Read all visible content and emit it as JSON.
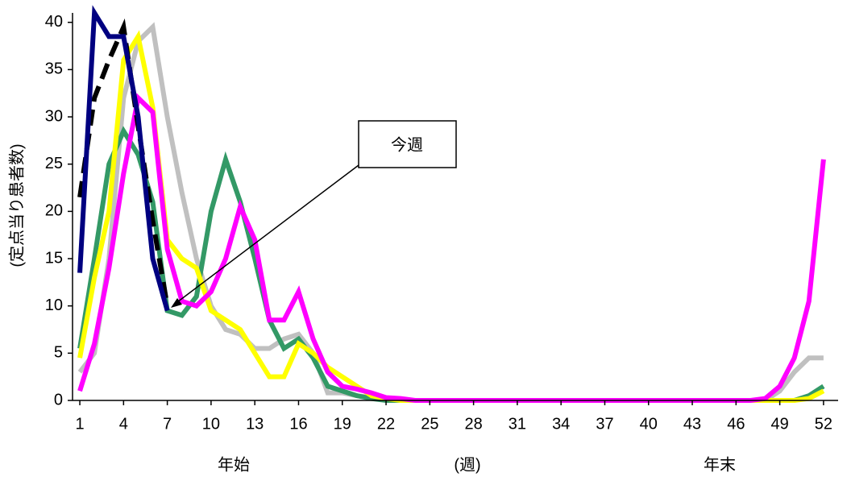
{
  "chart_data": {
    "type": "line",
    "y_label": "(定点当り患者数)",
    "x_label": "(週)",
    "x_start_label": "年始",
    "x_end_label": "年末",
    "annotation": "今週",
    "x": [
      1,
      2,
      3,
      4,
      5,
      6,
      7,
      8,
      9,
      10,
      11,
      12,
      13,
      14,
      15,
      16,
      17,
      18,
      19,
      20,
      21,
      22,
      23,
      24,
      25,
      26,
      27,
      28,
      29,
      30,
      31,
      32,
      33,
      34,
      35,
      36,
      37,
      38,
      39,
      40,
      41,
      42,
      43,
      44,
      45,
      46,
      47,
      48,
      49,
      50,
      51,
      52
    ],
    "xlim": [
      0.5,
      53
    ],
    "xticks": [
      1,
      4,
      7,
      10,
      13,
      16,
      19,
      22,
      25,
      28,
      31,
      34,
      37,
      40,
      43,
      46,
      49,
      52
    ],
    "ylim": [
      0,
      41
    ],
    "yticks": [
      0,
      5,
      10,
      15,
      20,
      25,
      30,
      35,
      40
    ],
    "series": [
      {
        "color": "#c0c0c0",
        "dashed": false,
        "values": [
          3,
          5,
          15,
          32,
          38,
          39.5,
          30,
          22,
          15,
          10,
          7.5,
          7,
          5.5,
          5.5,
          6.5,
          7,
          5,
          0.8,
          0.8,
          0.5,
          0.3,
          0,
          0,
          0,
          0,
          0,
          0,
          0,
          0,
          0,
          0,
          0,
          0,
          0,
          0,
          0,
          0,
          0,
          0,
          0,
          0,
          0,
          0,
          0,
          0,
          0,
          0,
          0,
          1,
          3,
          4.5,
          4.5
        ]
      },
      {
        "color": "#339966",
        "dashed": false,
        "values": [
          5.5,
          15,
          25,
          28.5,
          26,
          21,
          9.5,
          9,
          11,
          20,
          25.5,
          21,
          15,
          8.5,
          5.5,
          6.5,
          4.5,
          1.5,
          1,
          0.5,
          0.2,
          0,
          0,
          0,
          0,
          0,
          0,
          0,
          0,
          0,
          0,
          0,
          0,
          0,
          0,
          0,
          0,
          0,
          0,
          0,
          0,
          0,
          0,
          0,
          0,
          0,
          0,
          0,
          0,
          0,
          0.5,
          1.5
        ]
      },
      {
        "color": "#ffff00",
        "dashed": false,
        "values": [
          4.5,
          13,
          20,
          36,
          38.5,
          31,
          17,
          15,
          14,
          9.5,
          8.5,
          7.5,
          5,
          2.5,
          2.5,
          6,
          5,
          3.5,
          2.5,
          1.5,
          0.5,
          0.2,
          0,
          0,
          0,
          0,
          0,
          0,
          0,
          0,
          0,
          0,
          0,
          0,
          0,
          0,
          0,
          0,
          0,
          0,
          0,
          0,
          0,
          0,
          0,
          0,
          0,
          0,
          0,
          0,
          0.2,
          1
        ]
      },
      {
        "color": "#ff00ff",
        "dashed": false,
        "values": [
          1,
          6,
          14,
          24,
          32,
          30.5,
          16,
          10.5,
          10,
          11.5,
          15,
          20.5,
          17,
          8.5,
          8.5,
          11.5,
          6.5,
          3,
          1.5,
          1.2,
          0.8,
          0.3,
          0.2,
          0,
          0,
          0,
          0,
          0,
          0,
          0,
          0,
          0,
          0,
          0,
          0,
          0,
          0,
          0,
          0,
          0,
          0,
          0,
          0,
          0,
          0,
          0,
          0,
          0.2,
          1.5,
          4.5,
          10.5,
          25.5
        ]
      },
      {
        "color": "#000000",
        "dashed": true,
        "values": [
          21.5,
          32,
          36,
          39.5,
          29,
          19,
          10,
          null,
          null,
          null,
          null,
          null,
          null,
          null,
          null,
          null,
          null,
          null,
          null,
          null,
          null,
          null,
          null,
          null,
          null,
          null,
          null,
          null,
          null,
          null,
          null,
          null,
          null,
          null,
          null,
          null,
          null,
          null,
          null,
          null,
          null,
          null,
          null,
          null,
          null,
          null,
          null,
          null,
          null,
          null,
          null,
          null
        ]
      },
      {
        "color": "#000080",
        "dashed": false,
        "values": [
          13.5,
          41,
          38.5,
          38.5,
          30,
          15,
          9.5,
          null,
          null,
          null,
          null,
          null,
          null,
          null,
          null,
          null,
          null,
          null,
          null,
          null,
          null,
          null,
          null,
          null,
          null,
          null,
          null,
          null,
          null,
          null,
          null,
          null,
          null,
          null,
          null,
          null,
          null,
          null,
          null,
          null,
          null,
          null,
          null,
          null,
          null,
          null,
          null,
          null,
          null,
          null,
          null,
          null
        ]
      }
    ]
  }
}
